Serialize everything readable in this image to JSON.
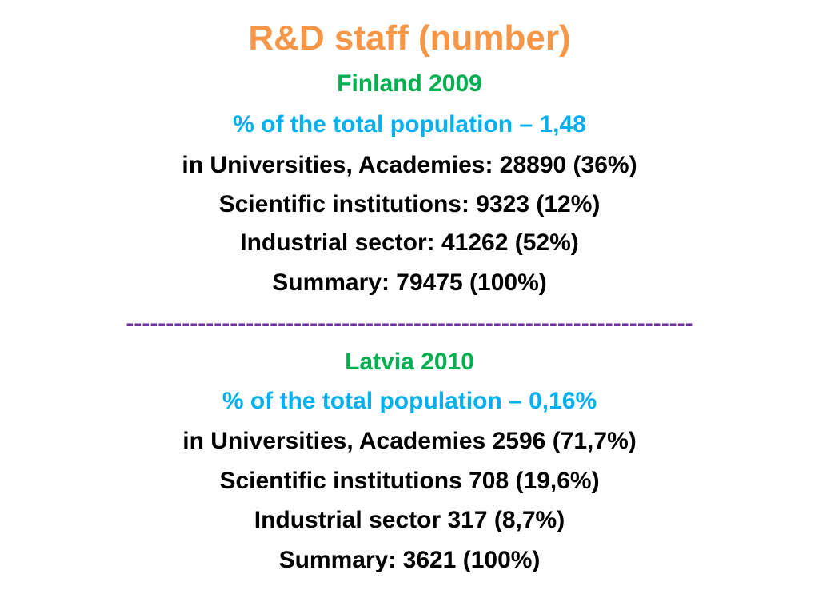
{
  "title": "R&D staff (number)",
  "divider": "-----------------------------------------------------------------------",
  "colors": {
    "title": "#f79646",
    "country": "#00b050",
    "percent": "#00b0f0",
    "divider": "#7030a0",
    "text": "#000000"
  },
  "finland": {
    "heading": "Finland 2009",
    "percent_line": "% of the total population – 1,48",
    "universities": "in Universities, Academies: 28890 (36%)",
    "scientific": "Scientific institutions: 9323 (12%)",
    "industrial": "Industrial sector: 41262 (52%)",
    "summary": "Summary: 79475 (100%)"
  },
  "latvia": {
    "heading": "Latvia 2010",
    "percent_line": "% of the total population – 0,16%",
    "universities": "in Universities, Academies 2596 (71,7%)",
    "scientific": "Scientific institutions 708 (19,6%)",
    "industrial": "Industrial sector 317 (8,7%)",
    "summary": "Summary: 3621 (100%)"
  }
}
